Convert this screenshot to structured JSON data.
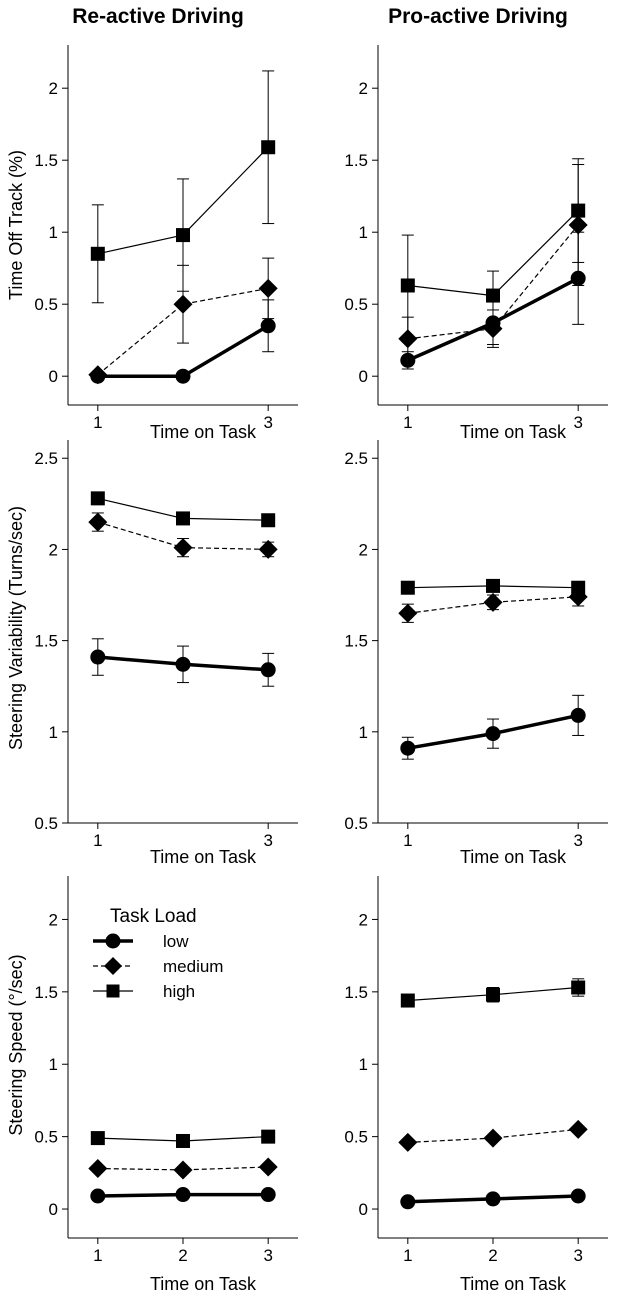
{
  "figure": {
    "column_titles": [
      "Re-active Driving",
      "Pro-active Driving"
    ],
    "row_ylabels": [
      "Time Off Track (%)",
      "Steering Variability (Turns/sec)",
      "Steering Speed (°/sec)"
    ],
    "xlabel": "Time on Task"
  },
  "legend": {
    "title": "Task Load",
    "entries": [
      "low",
      "medium",
      "high"
    ]
  },
  "chart_data": [
    {
      "type": "line",
      "title": "Re-active Driving",
      "xlabel": "Time on Task",
      "ylabel": "Time Off Track (%)",
      "xlim": [
        0.65,
        3.35
      ],
      "ylim": [
        -0.2,
        2.3
      ],
      "xticks": [
        1,
        3
      ],
      "yticks": [
        0,
        0.5,
        1,
        1.5,
        2
      ],
      "series": [
        {
          "name": "low",
          "x": [
            1,
            2,
            3
          ],
          "y": [
            0,
            0,
            0.35
          ],
          "err": [
            0,
            0,
            0.18
          ]
        },
        {
          "name": "medium",
          "x": [
            1,
            2,
            3
          ],
          "y": [
            0.01,
            0.5,
            0.61
          ],
          "err": [
            0,
            0.27,
            0.21
          ]
        },
        {
          "name": "high",
          "x": [
            1,
            2,
            3
          ],
          "y": [
            0.85,
            0.98,
            1.59
          ],
          "err": [
            0.34,
            0.39,
            0.53
          ]
        }
      ]
    },
    {
      "type": "line",
      "title": "Pro-active Driving",
      "xlabel": "Time on Task",
      "ylabel": "Time Off Track (%)",
      "xlim": [
        0.65,
        3.35
      ],
      "ylim": [
        -0.2,
        2.3
      ],
      "xticks": [
        1,
        3
      ],
      "yticks": [
        0,
        0.5,
        1,
        1.5,
        2
      ],
      "series": [
        {
          "name": "low",
          "x": [
            1,
            2,
            3
          ],
          "y": [
            0.11,
            0.37,
            0.68
          ],
          "err": [
            0.06,
            0.15,
            0.32
          ]
        },
        {
          "name": "medium",
          "x": [
            1,
            2,
            3
          ],
          "y": [
            0.26,
            0.33,
            1.05
          ],
          "err": [
            0.15,
            0.13,
            0.42
          ]
        },
        {
          "name": "high",
          "x": [
            1,
            2,
            3
          ],
          "y": [
            0.63,
            0.56,
            1.15
          ],
          "err": [
            0.35,
            0.17,
            0.36
          ]
        }
      ]
    },
    {
      "type": "line",
      "title": "Re-active Driving",
      "xlabel": "Time on Task",
      "ylabel": "Steering Variability (Turns/sec)",
      "xlim": [
        0.65,
        3.35
      ],
      "ylim": [
        0.5,
        2.6
      ],
      "xticks": [
        1,
        3
      ],
      "yticks": [
        0.5,
        1,
        1.5,
        2,
        2.5
      ],
      "series": [
        {
          "name": "low",
          "x": [
            1,
            2,
            3
          ],
          "y": [
            1.41,
            1.37,
            1.34
          ],
          "err": [
            0.1,
            0.1,
            0.09
          ]
        },
        {
          "name": "medium",
          "x": [
            1,
            2,
            3
          ],
          "y": [
            2.15,
            2.01,
            2.0
          ],
          "err": [
            0.05,
            0.05,
            0.04
          ]
        },
        {
          "name": "high",
          "x": [
            1,
            2,
            3
          ],
          "y": [
            2.28,
            2.17,
            2.16
          ],
          "err": [
            0,
            0,
            0
          ]
        }
      ]
    },
    {
      "type": "line",
      "title": "Pro-active Driving",
      "xlabel": "Time on Task",
      "ylabel": "Steering Variability (Turns/sec)",
      "xlim": [
        0.65,
        3.35
      ],
      "ylim": [
        0.5,
        2.6
      ],
      "xticks": [
        1,
        3
      ],
      "yticks": [
        0.5,
        1,
        1.5,
        2,
        2.5
      ],
      "series": [
        {
          "name": "low",
          "x": [
            1,
            2,
            3
          ],
          "y": [
            0.91,
            0.99,
            1.09
          ],
          "err": [
            0.06,
            0.08,
            0.11
          ]
        },
        {
          "name": "medium",
          "x": [
            1,
            2,
            3
          ],
          "y": [
            1.65,
            1.71,
            1.74
          ],
          "err": [
            0.05,
            0.04,
            0.05
          ]
        },
        {
          "name": "high",
          "x": [
            1,
            2,
            3
          ],
          "y": [
            1.79,
            1.8,
            1.79
          ],
          "err": [
            0,
            0,
            0
          ]
        }
      ]
    },
    {
      "type": "line",
      "title": "Re-active Driving",
      "xlabel": "Time on Task",
      "ylabel": "Steering Speed (°/sec)",
      "xlim": [
        0.65,
        3.35
      ],
      "ylim": [
        -0.2,
        2.3
      ],
      "xticks": [
        1,
        2,
        3
      ],
      "yticks": [
        0,
        0.5,
        1,
        1.5,
        2
      ],
      "series": [
        {
          "name": "low",
          "x": [
            1,
            2,
            3
          ],
          "y": [
            0.09,
            0.1,
            0.1
          ],
          "err": [
            0,
            0,
            0
          ]
        },
        {
          "name": "medium",
          "x": [
            1,
            2,
            3
          ],
          "y": [
            0.28,
            0.27,
            0.29
          ],
          "err": [
            0,
            0,
            0
          ]
        },
        {
          "name": "high",
          "x": [
            1,
            2,
            3
          ],
          "y": [
            0.49,
            0.47,
            0.5
          ],
          "err": [
            0,
            0,
            0
          ]
        }
      ]
    },
    {
      "type": "line",
      "title": "Pro-active Driving",
      "xlabel": "Time on Task",
      "ylabel": "Steering Speed (°/sec)",
      "xlim": [
        0.65,
        3.35
      ],
      "ylim": [
        -0.2,
        2.3
      ],
      "xticks": [
        1,
        2,
        3
      ],
      "yticks": [
        0,
        0.5,
        1,
        1.5,
        2
      ],
      "series": [
        {
          "name": "low",
          "x": [
            1,
            2,
            3
          ],
          "y": [
            0.05,
            0.07,
            0.09
          ],
          "err": [
            0,
            0,
            0
          ]
        },
        {
          "name": "medium",
          "x": [
            1,
            2,
            3
          ],
          "y": [
            0.46,
            0.49,
            0.55
          ],
          "err": [
            0,
            0,
            0
          ]
        },
        {
          "name": "high",
          "x": [
            1,
            2,
            3
          ],
          "y": [
            1.44,
            1.48,
            1.53
          ],
          "err": [
            0,
            0.05,
            0.06
          ]
        }
      ]
    }
  ]
}
